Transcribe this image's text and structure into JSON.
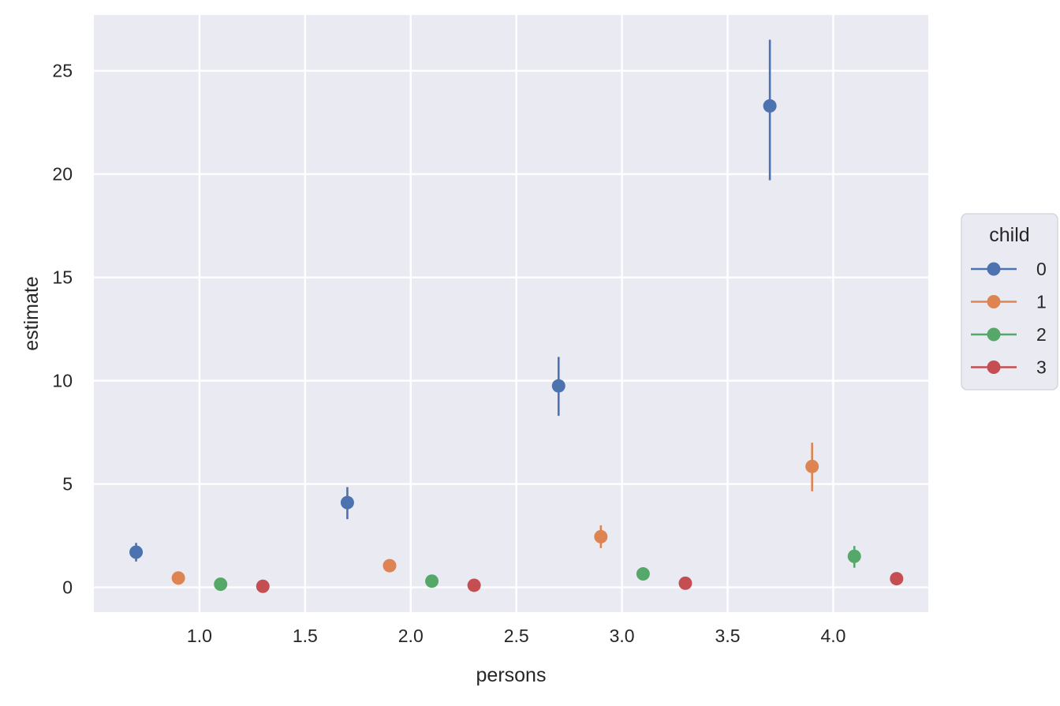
{
  "chart_data": {
    "type": "scatter",
    "title": "",
    "xlabel": "persons",
    "ylabel": "estimate",
    "xlim": [
      0.5,
      4.45
    ],
    "ylim": [
      -1.2,
      27.7
    ],
    "xticks": [
      1.0,
      1.5,
      2.0,
      2.5,
      3.0,
      3.5,
      4.0
    ],
    "xtick_labels": [
      "1.0",
      "1.5",
      "2.0",
      "2.5",
      "3.0",
      "3.5",
      "4.0"
    ],
    "yticks": [
      0,
      5,
      10,
      15,
      20,
      25
    ],
    "ytick_labels": [
      "0",
      "5",
      "10",
      "15",
      "20",
      "25"
    ],
    "grid": true,
    "background": "#EAEAF2",
    "legend": {
      "title": "child",
      "position": "right"
    },
    "series": [
      {
        "name": "0",
        "color": "#4C72B0",
        "points": [
          {
            "x": 0.7,
            "y": 1.7,
            "lo": 1.25,
            "hi": 2.15
          },
          {
            "x": 1.7,
            "y": 4.1,
            "lo": 3.3,
            "hi": 4.85
          },
          {
            "x": 2.7,
            "y": 9.75,
            "lo": 8.3,
            "hi": 11.15
          },
          {
            "x": 3.7,
            "y": 23.3,
            "lo": 19.7,
            "hi": 26.5
          }
        ]
      },
      {
        "name": "1",
        "color": "#DD8452",
        "points": [
          {
            "x": 0.9,
            "y": 0.45,
            "lo": 0.35,
            "hi": 0.55
          },
          {
            "x": 1.9,
            "y": 1.05,
            "lo": 0.9,
            "hi": 1.2
          },
          {
            "x": 2.9,
            "y": 2.45,
            "lo": 1.9,
            "hi": 3.0
          },
          {
            "x": 3.9,
            "y": 5.85,
            "lo": 4.65,
            "hi": 7.0
          }
        ]
      },
      {
        "name": "2",
        "color": "#55A868",
        "points": [
          {
            "x": 1.1,
            "y": 0.15,
            "lo": 0.1,
            "hi": 0.2
          },
          {
            "x": 2.1,
            "y": 0.3,
            "lo": 0.22,
            "hi": 0.38
          },
          {
            "x": 3.1,
            "y": 0.65,
            "lo": 0.5,
            "hi": 0.8
          },
          {
            "x": 4.1,
            "y": 1.5,
            "lo": 0.95,
            "hi": 2.0
          }
        ]
      },
      {
        "name": "3",
        "color": "#C44E52",
        "points": [
          {
            "x": 1.3,
            "y": 0.05,
            "lo": 0.03,
            "hi": 0.07
          },
          {
            "x": 2.3,
            "y": 0.1,
            "lo": 0.07,
            "hi": 0.13
          },
          {
            "x": 3.3,
            "y": 0.2,
            "lo": 0.15,
            "hi": 0.25
          },
          {
            "x": 4.3,
            "y": 0.42,
            "lo": 0.35,
            "hi": 0.5
          }
        ]
      }
    ]
  }
}
